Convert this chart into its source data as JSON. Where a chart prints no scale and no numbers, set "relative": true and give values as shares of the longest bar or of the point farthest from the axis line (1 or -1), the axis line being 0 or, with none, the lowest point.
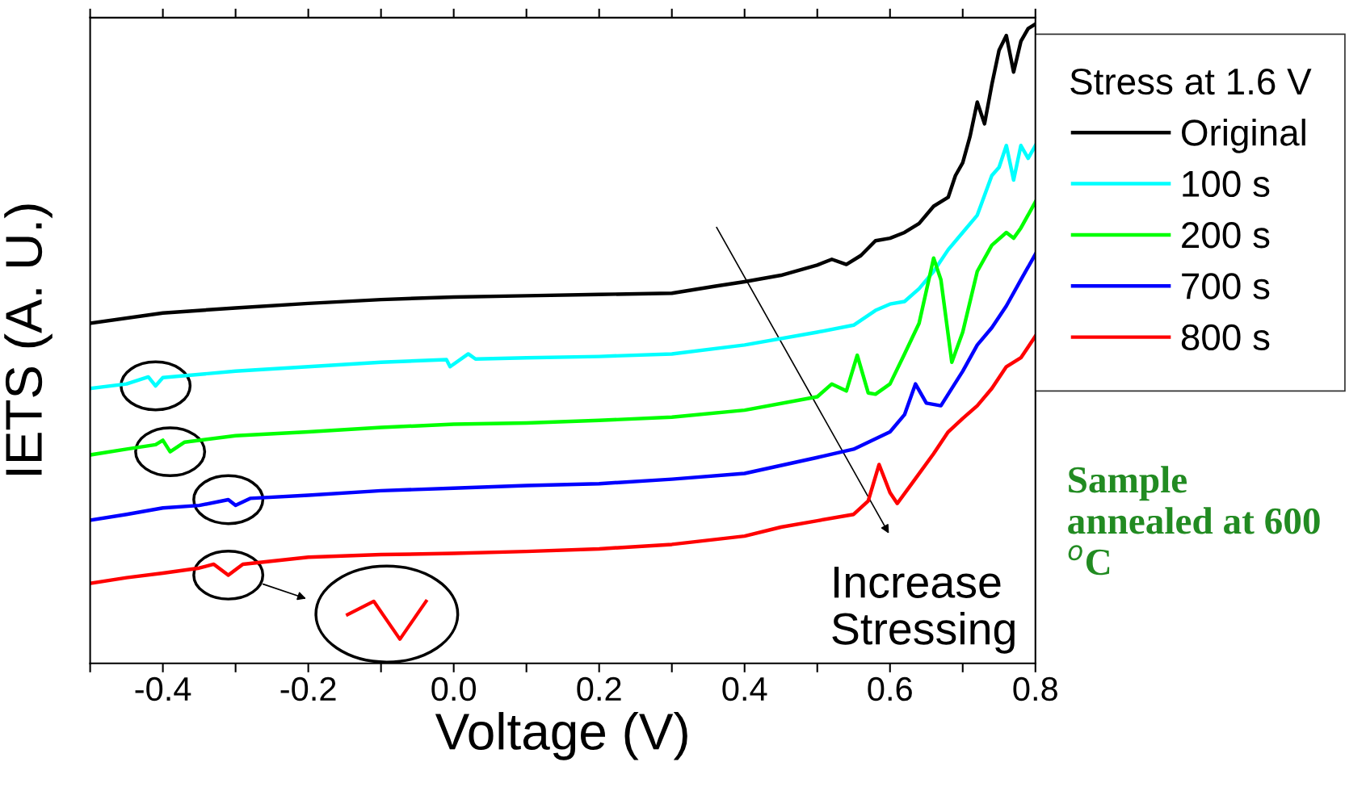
{
  "chart_data": {
    "type": "line",
    "relative": true,
    "xlabel": "Voltage (V)",
    "ylabel": "IETS (A. U.)",
    "legend_title": "Stress at 1.6 V",
    "legend": "top right",
    "grid": false,
    "line_style": "solid",
    "tick_labels": "x",
    "xlim": [
      -0.5,
      0.8
    ],
    "xticks": [
      {
        "value": -0.5,
        "label": null
      },
      -0.4,
      {
        "value": -0.3,
        "label": null
      },
      -0.2,
      {
        "value": -0.1,
        "label": null
      },
      {
        "value": 0.0,
        "label": "0.0"
      },
      {
        "value": 0.1,
        "label": null
      },
      0.2,
      {
        "value": 0.3,
        "label": null
      },
      0.4,
      {
        "value": 0.5,
        "label": null
      },
      0.6,
      {
        "value": 0.7,
        "label": null
      },
      0.8
    ],
    "series": [
      {
        "name": "Original",
        "color": "#000000",
        "x": [
          -0.5,
          -0.4,
          -0.3,
          -0.2,
          -0.1,
          0.0,
          0.1,
          0.2,
          0.3,
          0.36,
          0.4,
          0.45,
          0.5,
          0.52,
          0.54,
          0.56,
          0.58,
          0.6,
          0.62,
          0.64,
          0.66,
          0.68,
          0.69,
          0.7,
          0.71,
          0.72,
          0.73,
          0.74,
          0.75,
          0.76,
          0.77,
          0.78,
          0.79,
          0.8
        ],
        "values": [
          0.532,
          0.548,
          0.556,
          0.563,
          0.569,
          0.573,
          0.575,
          0.577,
          0.579,
          0.59,
          0.597,
          0.607,
          0.623,
          0.632,
          0.624,
          0.638,
          0.661,
          0.665,
          0.674,
          0.688,
          0.715,
          0.729,
          0.763,
          0.783,
          0.824,
          0.878,
          0.844,
          0.905,
          0.959,
          0.982,
          0.925,
          0.973,
          0.993,
          1.0
        ]
      },
      {
        "name": "100 s",
        "color": "#00ffff",
        "x": [
          -0.5,
          -0.45,
          -0.42,
          -0.41,
          -0.4,
          -0.3,
          -0.2,
          -0.1,
          -0.01,
          -0.005,
          0.02,
          0.03,
          0.1,
          0.2,
          0.3,
          0.4,
          0.5,
          0.55,
          0.58,
          0.6,
          0.62,
          0.64,
          0.66,
          0.68,
          0.7,
          0.72,
          0.74,
          0.75,
          0.76,
          0.77,
          0.78,
          0.79,
          0.8
        ],
        "values": [
          0.43,
          0.437,
          0.448,
          0.434,
          0.447,
          0.457,
          0.464,
          0.471,
          0.475,
          0.464,
          0.484,
          0.476,
          0.478,
          0.48,
          0.484,
          0.498,
          0.518,
          0.529,
          0.552,
          0.562,
          0.566,
          0.586,
          0.613,
          0.647,
          0.674,
          0.701,
          0.763,
          0.776,
          0.81,
          0.756,
          0.81,
          0.79,
          0.81
        ]
      },
      {
        "name": "200 s",
        "color": "#00ff00",
        "x": [
          -0.5,
          -0.45,
          -0.41,
          -0.4,
          -0.39,
          -0.37,
          -0.3,
          -0.2,
          -0.1,
          0.0,
          0.1,
          0.2,
          0.3,
          0.4,
          0.5,
          0.52,
          0.54,
          0.555,
          0.57,
          0.58,
          0.6,
          0.62,
          0.64,
          0.66,
          0.67,
          0.685,
          0.7,
          0.72,
          0.74,
          0.76,
          0.77,
          0.78,
          0.8
        ],
        "values": [
          0.326,
          0.335,
          0.342,
          0.349,
          0.331,
          0.346,
          0.356,
          0.362,
          0.369,
          0.374,
          0.376,
          0.38,
          0.385,
          0.396,
          0.417,
          0.437,
          0.426,
          0.482,
          0.423,
          0.421,
          0.437,
          0.484,
          0.532,
          0.634,
          0.6,
          0.471,
          0.518,
          0.613,
          0.654,
          0.674,
          0.665,
          0.681,
          0.722
        ]
      },
      {
        "name": "700 s",
        "color": "#0000ff",
        "x": [
          -0.5,
          -0.45,
          -0.4,
          -0.35,
          -0.31,
          -0.3,
          -0.28,
          -0.2,
          -0.1,
          0.0,
          0.1,
          0.2,
          0.3,
          0.4,
          0.5,
          0.55,
          0.6,
          0.62,
          0.635,
          0.65,
          0.67,
          0.7,
          0.72,
          0.74,
          0.76,
          0.78,
          0.8
        ],
        "values": [
          0.224,
          0.233,
          0.243,
          0.247,
          0.256,
          0.247,
          0.258,
          0.263,
          0.27,
          0.274,
          0.278,
          0.281,
          0.288,
          0.297,
          0.322,
          0.335,
          0.362,
          0.389,
          0.437,
          0.407,
          0.403,
          0.457,
          0.498,
          0.525,
          0.559,
          0.6,
          0.64
        ]
      },
      {
        "name": "800 s",
        "color": "#ff0000",
        "x": [
          -0.5,
          -0.45,
          -0.4,
          -0.35,
          -0.33,
          -0.31,
          -0.29,
          -0.2,
          -0.1,
          0.0,
          0.1,
          0.2,
          0.3,
          0.4,
          0.45,
          0.5,
          0.55,
          0.57,
          0.585,
          0.6,
          0.61,
          0.63,
          0.66,
          0.68,
          0.7,
          0.72,
          0.74,
          0.76,
          0.78,
          0.8
        ],
        "values": [
          0.125,
          0.134,
          0.141,
          0.149,
          0.155,
          0.138,
          0.155,
          0.166,
          0.17,
          0.172,
          0.175,
          0.179,
          0.186,
          0.199,
          0.213,
          0.223,
          0.233,
          0.254,
          0.311,
          0.267,
          0.25,
          0.281,
          0.328,
          0.362,
          0.383,
          0.403,
          0.43,
          0.464,
          0.478,
          0.512
        ]
      }
    ],
    "annotations": [
      "Increase Stressing",
      "Sample annealed at 600 $^{o}$C"
    ]
  }
}
